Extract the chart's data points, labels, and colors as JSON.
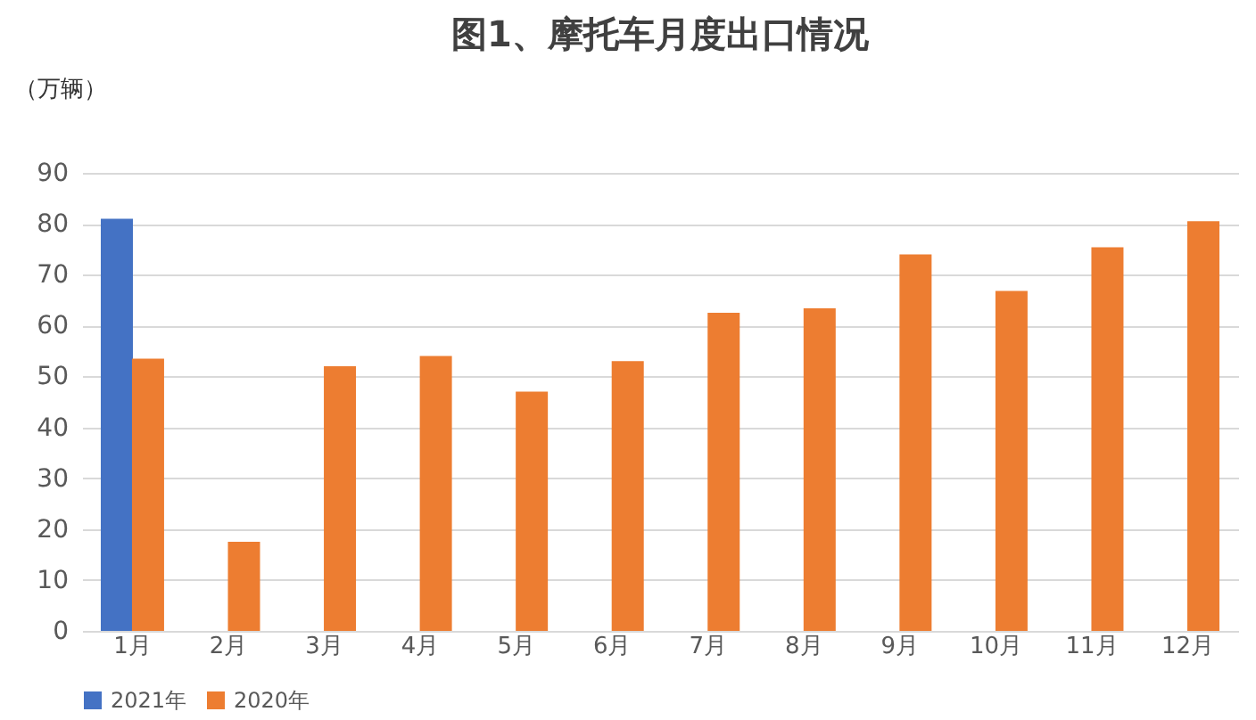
{
  "chart_data": {
    "type": "bar",
    "title": "图1、摩托车月度出口情况",
    "ylabel": "（万辆）",
    "categories": [
      "1月",
      "2月",
      "3月",
      "4月",
      "5月",
      "6月",
      "7月",
      "8月",
      "9月",
      "10月",
      "11月",
      "12月"
    ],
    "series": [
      {
        "name": "2021年",
        "color": "#4472c4",
        "values": [
          81,
          null,
          null,
          null,
          null,
          null,
          null,
          null,
          null,
          null,
          null,
          null
        ]
      },
      {
        "name": "2020年",
        "color": "#ed7d31",
        "values": [
          53.5,
          17.5,
          52,
          54,
          47,
          53,
          62.5,
          63.4,
          74,
          66.8,
          75.4,
          80.5
        ]
      }
    ],
    "ylim": [
      0,
      90
    ],
    "yticks": [
      0,
      10,
      20,
      30,
      40,
      50,
      60,
      70,
      80,
      90
    ],
    "grid": "y",
    "legend": "bottom"
  }
}
